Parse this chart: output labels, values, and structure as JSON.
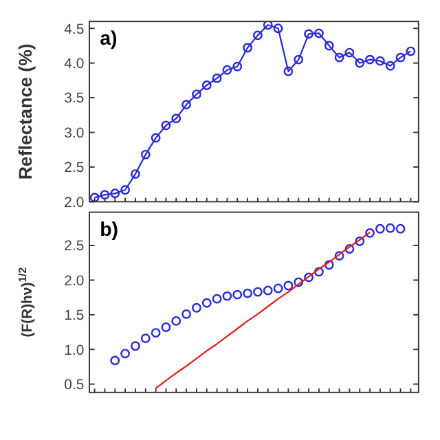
{
  "chart_data": [
    {
      "type": "line",
      "ylabel": "Reflectance (%)",
      "annotations": [
        "a)"
      ],
      "marker": "circle",
      "grid": false,
      "tick_labels": "y",
      "ylim": [
        2.0,
        4.6
      ],
      "yticks": [
        {
          "value": 2,
          "label": "2.0"
        },
        2.5,
        {
          "value": 3,
          "label": "3.0"
        },
        3.5,
        {
          "value": 4,
          "label": "4.0"
        },
        4.5
      ],
      "categories": [
        null,
        null,
        null,
        null,
        null,
        null,
        null,
        null,
        null,
        null,
        null,
        null,
        null,
        null,
        null,
        null,
        null,
        null,
        null,
        null,
        null,
        null,
        null,
        null,
        null,
        null,
        null,
        null,
        null,
        null,
        null,
        null
      ],
      "series": [
        {
          "color": "#2b2bd9",
          "values": [
            2.06,
            2.1,
            2.12,
            2.17,
            2.4,
            2.68,
            2.92,
            3.1,
            3.2,
            3.4,
            3.55,
            3.68,
            3.78,
            3.9,
            3.95,
            4.22,
            4.4,
            4.55,
            4.5,
            3.88,
            4.05,
            4.42,
            4.43,
            4.25,
            4.08,
            4.15,
            4.0,
            4.05,
            4.03,
            3.96,
            4.08,
            4.17
          ]
        }
      ]
    },
    {
      "type": "scatter",
      "ylabel": "(F(R)hν)$^{1/2}$",
      "annotations": [
        "b)"
      ],
      "marker": "circle",
      "grid": false,
      "tick_labels": "y",
      "ylim": [
        0.38,
        2.98
      ],
      "yticks": [
        0.5,
        {
          "value": 1,
          "label": "1.0"
        },
        1.5,
        {
          "value": 2,
          "label": "2.0"
        },
        2.5
      ],
      "categories": [
        null,
        null,
        null,
        null,
        null,
        null,
        null,
        null,
        null,
        null,
        null,
        null,
        null,
        null,
        null,
        null,
        null,
        null,
        null,
        null,
        null,
        null,
        null,
        null,
        null,
        null,
        null,
        null,
        null,
        null,
        null,
        null
      ],
      "series": [
        {
          "color": "#2b2bd9",
          "values": [
            null,
            null,
            0.84,
            0.94,
            1.05,
            1.16,
            1.24,
            1.32,
            1.41,
            1.51,
            1.6,
            1.67,
            1.73,
            1.77,
            1.79,
            1.81,
            1.83,
            1.85,
            1.88,
            1.92,
            1.97,
            2.04,
            2.12,
            2.22,
            2.35,
            2.45,
            2.56,
            2.68,
            2.74,
            2.75,
            2.74,
            null
          ]
        },
        {
          "type": "line",
          "marker": "none",
          "color": "#e02020",
          "values": [
            null,
            null,
            null,
            null,
            null,
            null,
            0.44,
            0.55,
            0.66,
            0.76,
            0.87,
            0.98,
            1.08,
            1.19,
            1.3,
            1.41,
            1.51,
            1.62,
            1.73,
            1.83,
            1.94,
            2.05,
            2.16,
            2.26,
            2.37,
            2.48,
            2.58,
            2.69,
            null,
            null,
            null,
            null
          ]
        }
      ]
    }
  ]
}
